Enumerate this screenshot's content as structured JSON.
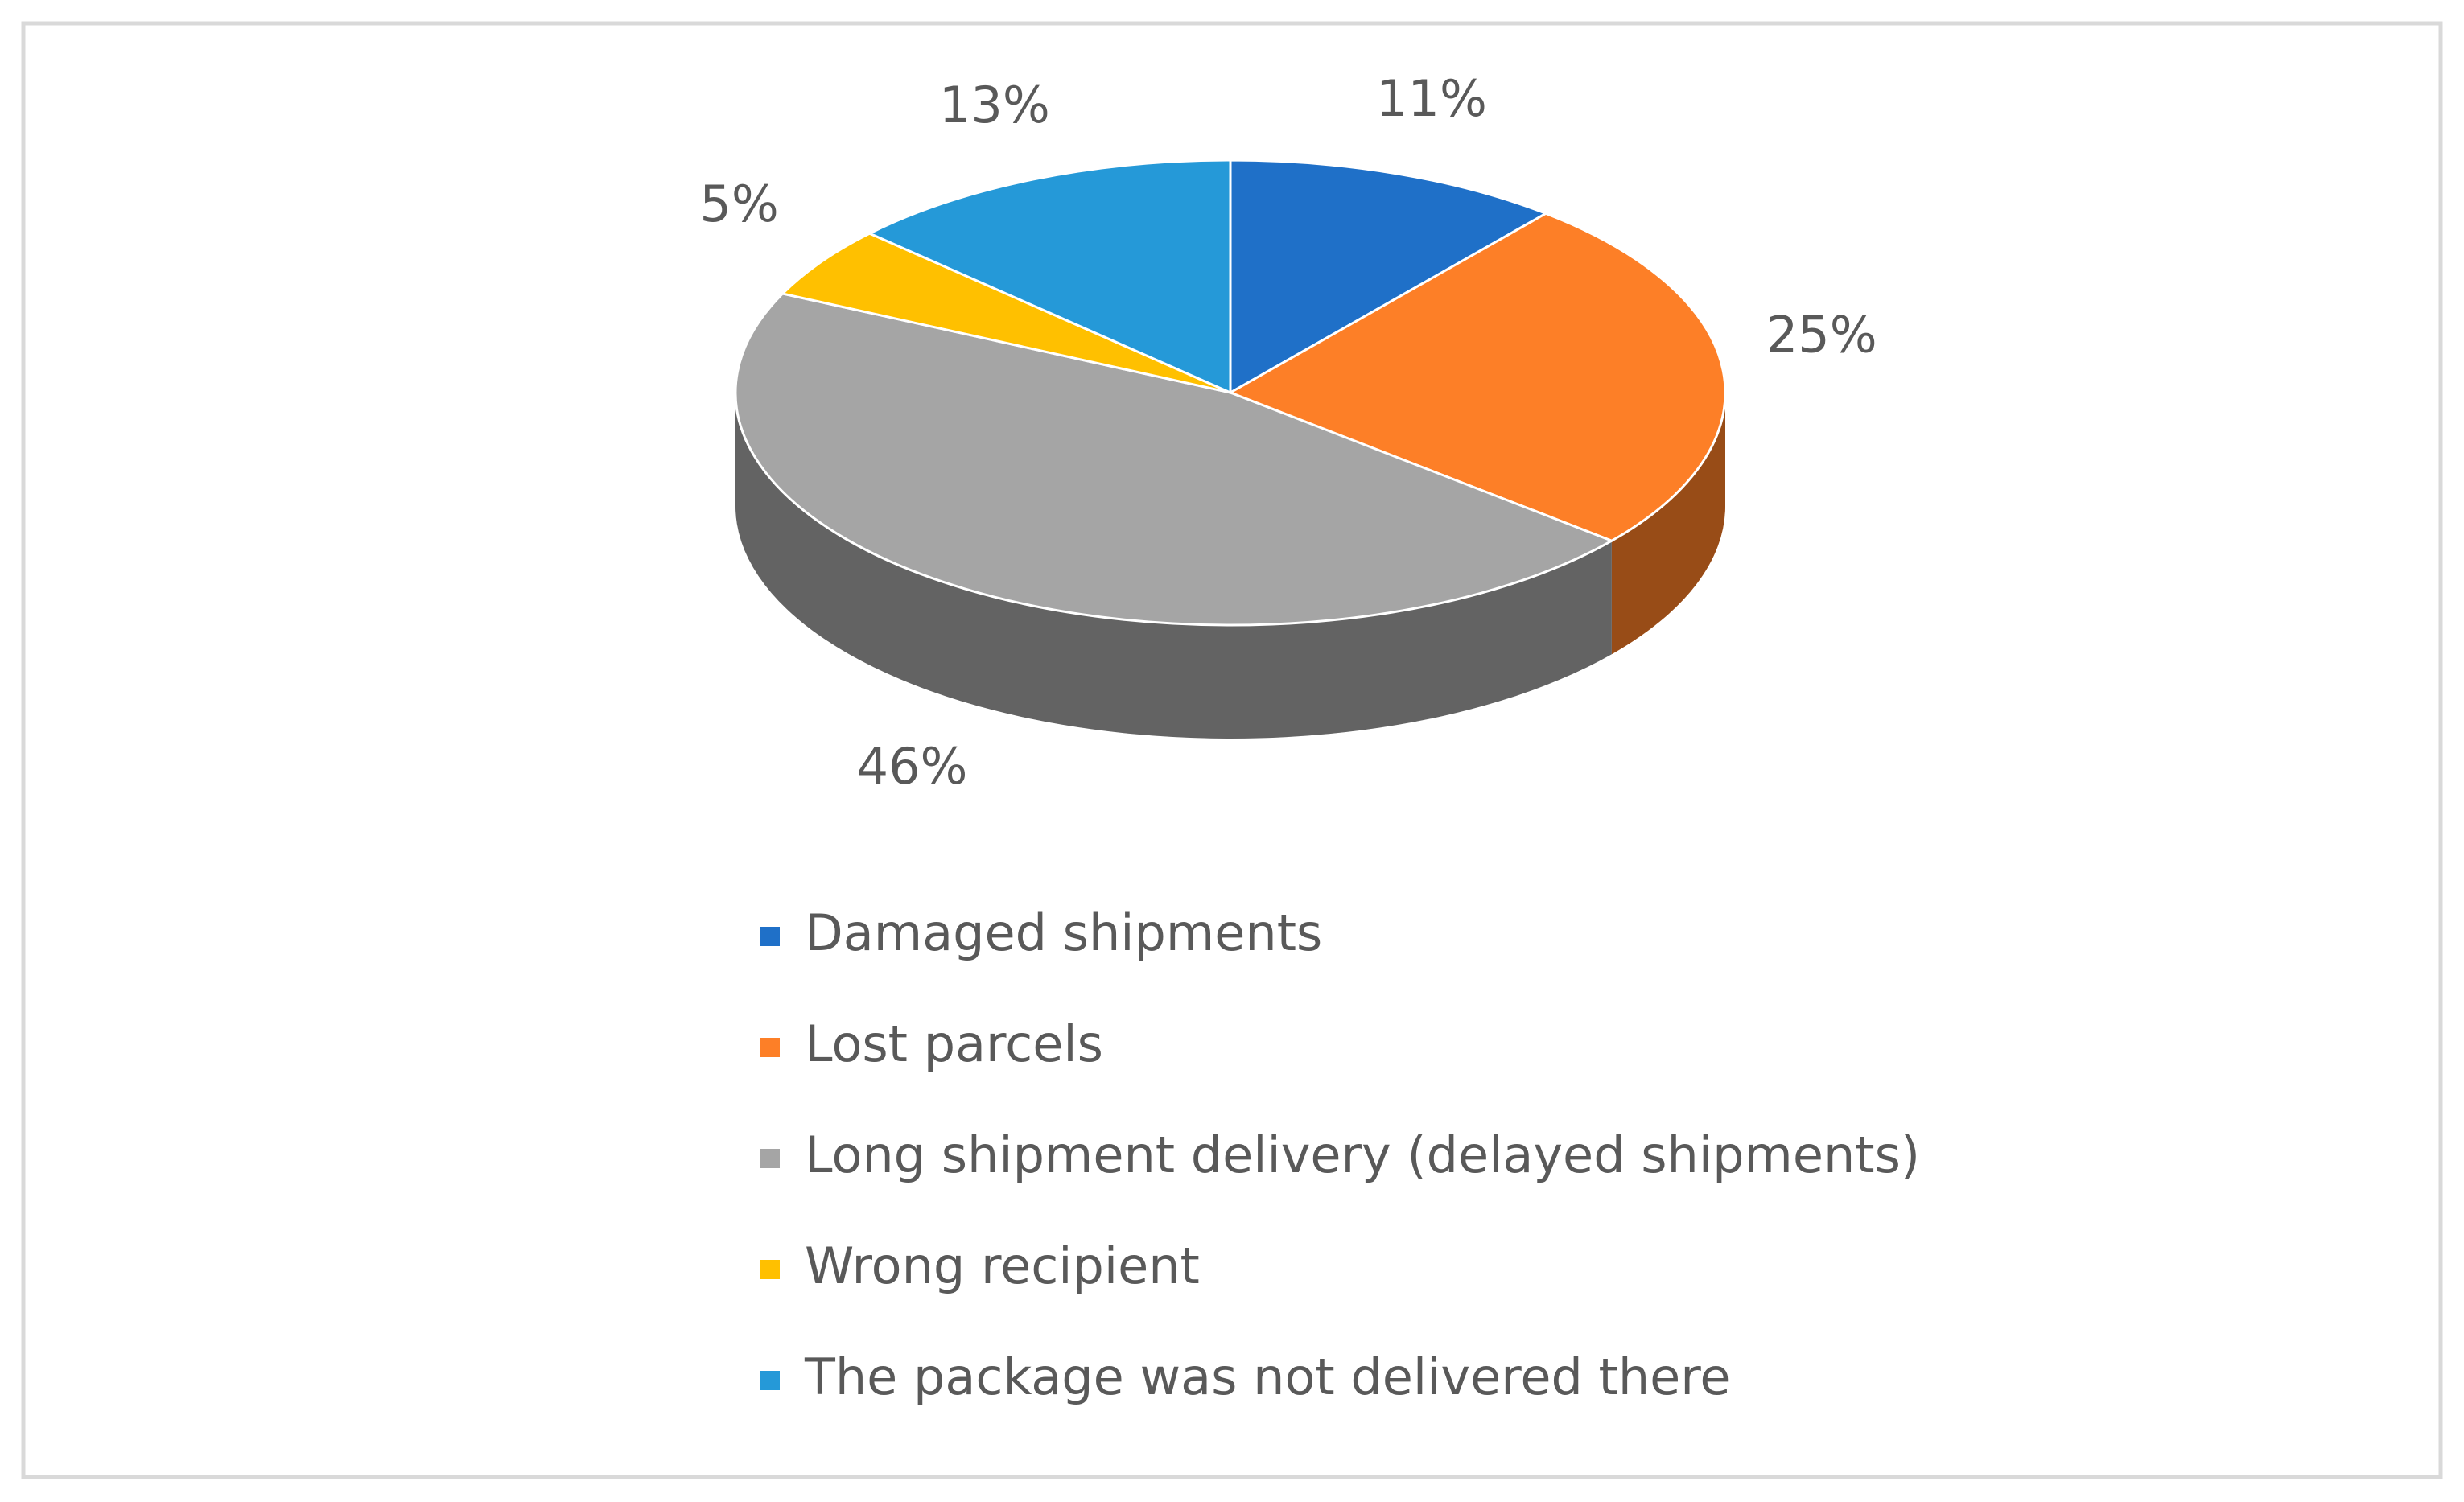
{
  "chart_data": {
    "type": "pie",
    "categories": [
      "Damaged shipments",
      "Lost parcels",
      "Long shipment delivery (delayed shipments)",
      "Wrong recipient",
      "The package was not delivered there"
    ],
    "values": [
      11,
      25,
      46,
      5,
      13
    ],
    "value_labels": [
      "11%",
      "25%",
      "46%",
      "5%",
      "13%"
    ],
    "colors": [
      "#1f70c8",
      "#fd7f27",
      "#a5a5a5",
      "#ffc000",
      "#2599d8"
    ],
    "legend": "bottom"
  }
}
